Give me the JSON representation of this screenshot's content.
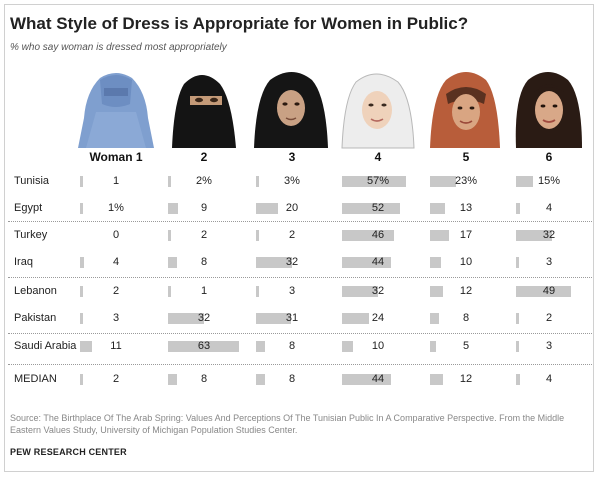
{
  "title": "What Style of Dress is Appropriate  for Women in Public?",
  "subtitle": "% who say woman is dressed most appropriately",
  "source": "Source: The Birthplace Of The Arab Spring: Values And Perceptions Of The Tunisian Public In A Comparative Perspective. From the Middle Eastern Values Study, University of Michigan Population Studies Center.",
  "credit": "PEW RESEARCH CENTER",
  "figure_icons": [
    "burqa-woman-icon",
    "niqab-woman-icon",
    "chador-woman-icon",
    "hijab-woman-icon",
    "loose-scarf-woman-icon",
    "uncovered-woman-icon"
  ],
  "colors": {
    "bar": "#c8c8c8",
    "title": "#222222",
    "separator": "#9a9a9a"
  },
  "chart_data": {
    "type": "table",
    "title": "What Style of Dress is Appropriate  for Women in Public?",
    "subtitle": "% who say woman is dressed most appropriately",
    "columns": [
      "Woman 1",
      "2",
      "3",
      "4",
      "5",
      "6"
    ],
    "rows": [
      {
        "label": "Tunisia",
        "values": [
          1,
          2,
          3,
          57,
          23,
          15
        ],
        "display": [
          "1",
          "2%",
          "3%",
          "57%",
          "23%",
          "15%"
        ]
      },
      {
        "label": "Egypt",
        "values": [
          1,
          9,
          20,
          52,
          13,
          4
        ],
        "display": [
          "1%",
          "9",
          "20",
          "52",
          "13",
          "4"
        ]
      },
      {
        "label": "Turkey",
        "values": [
          0,
          2,
          2,
          46,
          17,
          32
        ],
        "display": [
          "0",
          "2",
          "2",
          "46",
          "17",
          "32"
        ]
      },
      {
        "label": "Iraq",
        "values": [
          4,
          8,
          32,
          44,
          10,
          3
        ],
        "display": [
          "4",
          "8",
          "32",
          "44",
          "10",
          "3"
        ]
      },
      {
        "label": "Lebanon",
        "values": [
          2,
          1,
          3,
          32,
          12,
          49
        ],
        "display": [
          "2",
          "1",
          "3",
          "32",
          "12",
          "49"
        ]
      },
      {
        "label": "Pakistan",
        "values": [
          3,
          32,
          31,
          24,
          8,
          2
        ],
        "display": [
          "3",
          "32",
          "31",
          "24",
          "8",
          "2"
        ]
      },
      {
        "label": "Saudi Arabia",
        "values": [
          11,
          63,
          8,
          10,
          5,
          3
        ],
        "display": [
          "11",
          "63",
          "8",
          "10",
          "5",
          "3"
        ]
      },
      {
        "label": "MEDIAN",
        "values": [
          2,
          8,
          8,
          44,
          12,
          4
        ],
        "display": [
          "2",
          "8",
          "8",
          "44",
          "12",
          "4"
        ]
      }
    ]
  }
}
